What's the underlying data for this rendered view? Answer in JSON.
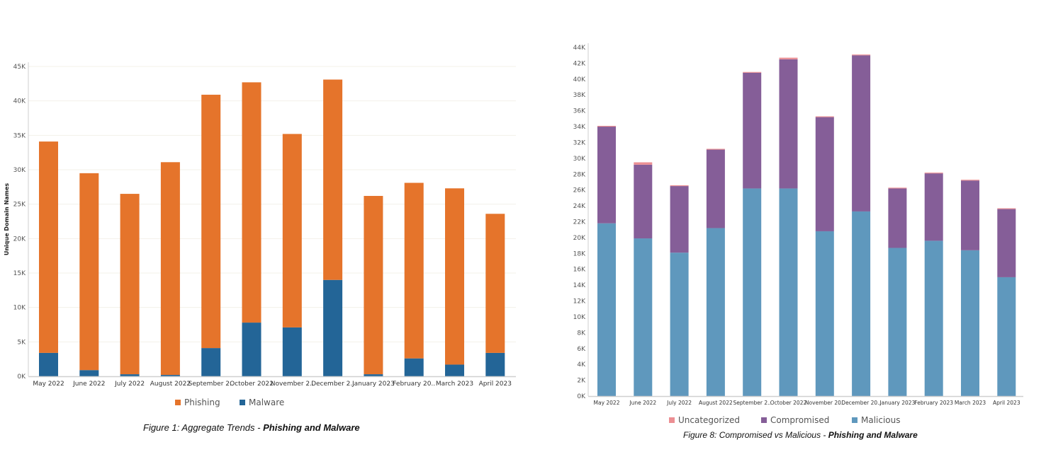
{
  "chart_data": [
    {
      "type": "bar",
      "stacked": true,
      "title": "Figure 1: Aggregate Trends - Phishing and Malware",
      "caption_prefix": "Figure 1: Aggregate Trends - ",
      "caption_bold": "Phishing and Malware",
      "xlabel": "",
      "ylabel": "Unique Domain Names",
      "ylim": [
        0,
        45000
      ],
      "yticks": [
        0,
        5000,
        10000,
        15000,
        20000,
        25000,
        30000,
        35000,
        40000,
        45000
      ],
      "ytick_labels": [
        "0K",
        "5K",
        "10K",
        "15K",
        "20K",
        "25K",
        "30K",
        "35K",
        "40K",
        "45K"
      ],
      "grid": true,
      "legend_position": "bottom",
      "categories": [
        "May 2022",
        "June 2022",
        "July 2022",
        "August 2022",
        "September 2022",
        "October 2022",
        "November 2022",
        "December 2022",
        "January 2023",
        "February 2023",
        "March 2023",
        "April 2023"
      ],
      "category_labels": [
        "May 2022",
        "June 2022",
        "July 2022",
        "August 2022",
        "September 2..",
        "October 2022",
        "November 2..",
        "December 2..",
        "January 2023",
        "February 20..",
        "March 2023",
        "April 2023"
      ],
      "series": [
        {
          "name": "Malware",
          "color": "#236597",
          "values": [
            3400,
            900,
            300,
            200,
            4100,
            7800,
            7100,
            14000,
            300,
            2600,
            1700,
            3400
          ]
        },
        {
          "name": "Phishing",
          "color": "#E5742B",
          "values": [
            30700,
            28600,
            26200,
            30900,
            36800,
            34900,
            28100,
            29100,
            25900,
            25500,
            25600,
            20200
          ]
        }
      ],
      "legend": [
        {
          "name": "Phishing",
          "color": "#E5742B"
        },
        {
          "name": "Malware",
          "color": "#236597"
        }
      ]
    },
    {
      "type": "bar",
      "stacked": true,
      "title": "Figure 8: Compromised vs Malicious - Phishing and Malware",
      "caption_prefix": "Figure 8: Compromised vs Malicious - ",
      "caption_bold": "Phishing and Malware",
      "xlabel": "",
      "ylabel": "",
      "ylim": [
        0,
        44000
      ],
      "yticks": [
        0,
        2000,
        4000,
        6000,
        8000,
        10000,
        12000,
        14000,
        16000,
        18000,
        20000,
        22000,
        24000,
        26000,
        28000,
        30000,
        32000,
        34000,
        36000,
        38000,
        40000,
        42000,
        44000
      ],
      "ytick_labels": [
        "0K",
        "2K",
        "4K",
        "6K",
        "8K",
        "10K",
        "12K",
        "14K",
        "16K",
        "18K",
        "20K",
        "22K",
        "24K",
        "26K",
        "28K",
        "30K",
        "32K",
        "34K",
        "36K",
        "38K",
        "40K",
        "42K",
        "44K"
      ],
      "grid": false,
      "legend_position": "bottom",
      "categories": [
        "May 2022",
        "June 2022",
        "July 2022",
        "August 2022",
        "September 2022",
        "October 2022",
        "November 2022",
        "December 2022",
        "January 2023",
        "February 2023",
        "March 2023",
        "April 2023"
      ],
      "category_labels": [
        "May 2022",
        "June 2022",
        "July 2022",
        "August 2022",
        "September 2..",
        "October 2022",
        "November 20..",
        "December 20..",
        "January 2023",
        "February 2023",
        "March 2023",
        "April 2023"
      ],
      "series": [
        {
          "name": "Malicious",
          "color": "#5F98BD",
          "values": [
            21800,
            19900,
            18100,
            21200,
            26200,
            26200,
            20800,
            23300,
            18700,
            19600,
            18400,
            15000
          ]
        },
        {
          "name": "Compromised",
          "color": "#855E98",
          "values": [
            12200,
            9300,
            8400,
            9900,
            14600,
            16300,
            14400,
            19700,
            7500,
            8500,
            8800,
            8600
          ]
        },
        {
          "name": "Uncategorized",
          "color": "#EC8F93",
          "values": [
            100,
            300,
            100,
            100,
            100,
            200,
            100,
            100,
            100,
            100,
            100,
            100
          ]
        }
      ],
      "legend": [
        {
          "name": "Uncategorized",
          "color": "#EC8F93"
        },
        {
          "name": "Compromised",
          "color": "#855E98"
        },
        {
          "name": "Malicious",
          "color": "#5F98BD"
        }
      ]
    }
  ]
}
